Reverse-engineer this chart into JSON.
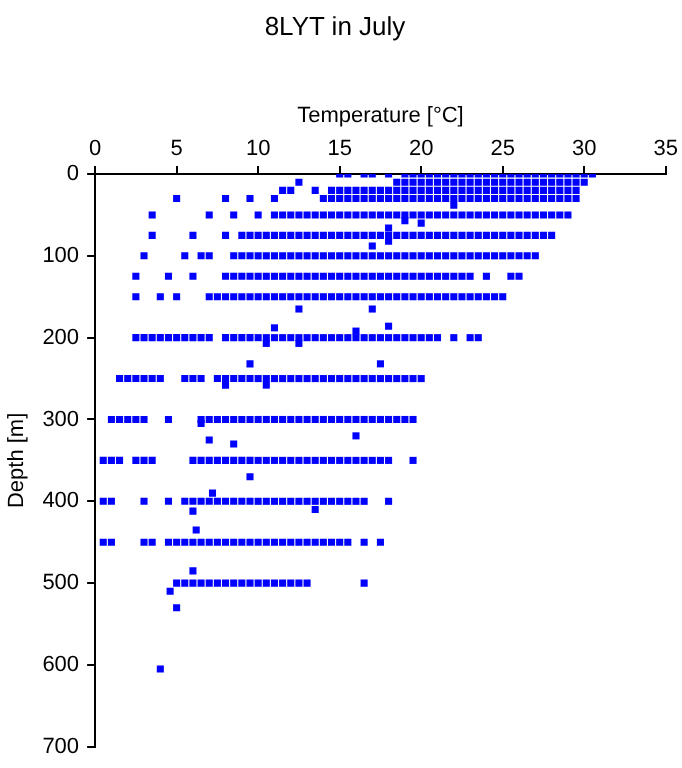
{
  "chart_data": {
    "type": "scatter",
    "title": "8LYT in July",
    "xlabel": "Temperature [°C]",
    "ylabel": "Depth [m]",
    "xlim": [
      0,
      35
    ],
    "xticks": [
      0,
      5,
      10,
      15,
      20,
      25,
      30,
      35
    ],
    "ylim": [
      700,
      0
    ],
    "yticks": [
      0,
      100,
      200,
      300,
      400,
      500,
      600,
      700
    ],
    "grid": false,
    "legend": false,
    "marker": "square",
    "series": [
      {
        "color": "#0000ff",
        "x": [
          15,
          15.5,
          16.5,
          17,
          18,
          19,
          19.5,
          20,
          20.5,
          21,
          21.5,
          22,
          22.5,
          23,
          23.5,
          24,
          24.5,
          25,
          25.5,
          26,
          26.5,
          27,
          27.5,
          28,
          28.5,
          29,
          29.5,
          30,
          30.5
        ],
        "values": [
          0,
          0,
          0,
          0,
          0,
          0,
          0,
          0,
          0,
          0,
          0,
          0,
          0,
          0,
          0,
          0,
          0,
          0,
          0,
          0,
          0,
          0,
          0,
          0,
          0,
          0,
          0,
          0,
          0
        ]
      },
      {
        "color": "#0000ff",
        "x": [
          12.5,
          18.5,
          19,
          19.5,
          20,
          20.5,
          21,
          21.5,
          22,
          22.5,
          23,
          23.5,
          24,
          24.5,
          25,
          25.5,
          26,
          26.5,
          27,
          27.5,
          28,
          28.5,
          29,
          29.5,
          30
        ],
        "values": [
          10,
          10,
          10,
          10,
          10,
          10,
          10,
          10,
          10,
          10,
          10,
          10,
          10,
          10,
          10,
          10,
          10,
          10,
          10,
          10,
          10,
          10,
          10,
          10,
          10
        ]
      },
      {
        "color": "#0000ff",
        "x": [
          11.5,
          12,
          13.5,
          14.5,
          15,
          15.5,
          16,
          16.5,
          17,
          17.5,
          18,
          18.5,
          19,
          19.5,
          20,
          20.5,
          21,
          21.5,
          22,
          22.5,
          23,
          23.5,
          24,
          24.5,
          25,
          25.5,
          26,
          26.5,
          27,
          27.5,
          28,
          28.5,
          29,
          29.5
        ],
        "values": [
          20,
          20,
          20,
          20,
          20,
          20,
          20,
          20,
          20,
          20,
          20,
          20,
          20,
          20,
          20,
          20,
          20,
          20,
          20,
          20,
          20,
          20,
          20,
          20,
          20,
          20,
          20,
          20,
          20,
          20,
          20,
          20,
          20,
          20
        ]
      },
      {
        "color": "#0000ff",
        "x": [
          5,
          8,
          9.5,
          11,
          14,
          14.5,
          15,
          15.5,
          16,
          16.5,
          17,
          17.5,
          18,
          18.5,
          19,
          19.5,
          20,
          20.5,
          21,
          21.5,
          22,
          22.5,
          23,
          23.5,
          24,
          24.5,
          25,
          25.5,
          26,
          26.5,
          27,
          27.5,
          28,
          28.5,
          29,
          29.5
        ],
        "values": [
          30,
          30,
          30,
          30,
          30,
          30,
          30,
          30,
          30,
          30,
          30,
          30,
          30,
          30,
          30,
          30,
          30,
          30,
          30,
          30,
          30,
          30,
          30,
          30,
          30,
          30,
          30,
          30,
          30,
          30,
          30,
          30,
          30,
          30,
          30,
          30
        ]
      },
      {
        "color": "#0000ff",
        "x": [
          3.5,
          7,
          8.5,
          10,
          11,
          11.5,
          12,
          12.5,
          13,
          13.5,
          14,
          14.5,
          15,
          15.5,
          16,
          16.5,
          17,
          17.5,
          18,
          18.5,
          19,
          19.5,
          20,
          20.5,
          21,
          21.5,
          22,
          22.5,
          23,
          23.5,
          24,
          24.5,
          25,
          25.5,
          26,
          26.5,
          27,
          27.5,
          28,
          28.5,
          29
        ],
        "values": [
          50,
          50,
          50,
          50,
          50,
          50,
          50,
          50,
          50,
          50,
          50,
          50,
          50,
          50,
          50,
          50,
          50,
          50,
          50,
          50,
          50,
          50,
          50,
          50,
          50,
          50,
          50,
          50,
          50,
          50,
          50,
          50,
          50,
          50,
          50,
          50,
          50,
          50,
          50,
          50,
          50
        ]
      },
      {
        "color": "#0000ff",
        "x": [
          3.5,
          6,
          8,
          9,
          9.5,
          10,
          10.5,
          11,
          11.5,
          12,
          12.5,
          13,
          13.5,
          14,
          14.5,
          15,
          15.5,
          16,
          16.5,
          17,
          17.5,
          18,
          18.5,
          19,
          19.5,
          20,
          20.5,
          21,
          21.5,
          22,
          22.5,
          23,
          23.5,
          24,
          24.5,
          25,
          25.5,
          26,
          26.5,
          27,
          27.5,
          28
        ],
        "values": [
          75,
          75,
          75,
          75,
          75,
          75,
          75,
          75,
          75,
          75,
          75,
          75,
          75,
          75,
          75,
          75,
          75,
          75,
          75,
          75,
          75,
          75,
          75,
          75,
          75,
          75,
          75,
          75,
          75,
          75,
          75,
          75,
          75,
          75,
          75,
          75,
          75,
          75,
          75,
          75,
          75,
          75
        ]
      },
      {
        "color": "#0000ff",
        "x": [
          3,
          5.5,
          6.5,
          7,
          8.5,
          9,
          9.5,
          10,
          10.5,
          11,
          11.5,
          12,
          12.5,
          13,
          13.5,
          14,
          14.5,
          15,
          15.5,
          16,
          16.5,
          17,
          17.5,
          18,
          18.5,
          19,
          19.5,
          20,
          20.5,
          21,
          21.5,
          22,
          22.5,
          23,
          23.5,
          24,
          24.5,
          25,
          25.5,
          26,
          26.5,
          27
        ],
        "values": [
          100,
          100,
          100,
          100,
          100,
          100,
          100,
          100,
          100,
          100,
          100,
          100,
          100,
          100,
          100,
          100,
          100,
          100,
          100,
          100,
          100,
          100,
          100,
          100,
          100,
          100,
          100,
          100,
          100,
          100,
          100,
          100,
          100,
          100,
          100,
          100,
          100,
          100,
          100,
          100,
          100,
          100
        ]
      },
      {
        "color": "#0000ff",
        "x": [
          2.5,
          4.5,
          6,
          8,
          8.5,
          9,
          9.5,
          10,
          10.5,
          11,
          11.5,
          12,
          12.5,
          13,
          13.5,
          14,
          14.5,
          15,
          15.5,
          16,
          16.5,
          17,
          17.5,
          18,
          18.5,
          19,
          19.5,
          20,
          20.5,
          21,
          21.5,
          22,
          22.5,
          23,
          24,
          25.5,
          26
        ],
        "values": [
          125,
          125,
          125,
          125,
          125,
          125,
          125,
          125,
          125,
          125,
          125,
          125,
          125,
          125,
          125,
          125,
          125,
          125,
          125,
          125,
          125,
          125,
          125,
          125,
          125,
          125,
          125,
          125,
          125,
          125,
          125,
          125,
          125,
          125,
          125,
          125,
          125
        ]
      },
      {
        "color": "#0000ff",
        "x": [
          2.5,
          4,
          5,
          7,
          7.5,
          8,
          8.5,
          9,
          9.5,
          10,
          10.5,
          11,
          11.5,
          12,
          12.5,
          13,
          13.5,
          14,
          14.5,
          15,
          15.5,
          16,
          16.5,
          17,
          17.5,
          18,
          18.5,
          19,
          19.5,
          20,
          20.5,
          21,
          21.5,
          22,
          22.5,
          23,
          23.5,
          24,
          24.5,
          25
        ],
        "values": [
          150,
          150,
          150,
          150,
          150,
          150,
          150,
          150,
          150,
          150,
          150,
          150,
          150,
          150,
          150,
          150,
          150,
          150,
          150,
          150,
          150,
          150,
          150,
          150,
          150,
          150,
          150,
          150,
          150,
          150,
          150,
          150,
          150,
          150,
          150,
          150,
          150,
          150,
          150,
          150
        ]
      },
      {
        "color": "#0000ff",
        "x": [
          2.5,
          3,
          3.5,
          4,
          4.5,
          5,
          5.5,
          6,
          6.5,
          7,
          8,
          8.5,
          9,
          9.5,
          10,
          10.5,
          11,
          11.5,
          12,
          12.5,
          13,
          13.5,
          14,
          14.5,
          15,
          15.5,
          16,
          16.5,
          17,
          17.5,
          18,
          18.5,
          19,
          19.5,
          20,
          20.5,
          21,
          22,
          23,
          23.5
        ],
        "values": [
          200,
          200,
          200,
          200,
          200,
          200,
          200,
          200,
          200,
          200,
          200,
          200,
          200,
          200,
          200,
          200,
          200,
          200,
          200,
          200,
          200,
          200,
          200,
          200,
          200,
          200,
          200,
          200,
          200,
          200,
          200,
          200,
          200,
          200,
          200,
          200,
          200,
          200,
          200,
          200
        ]
      },
      {
        "color": "#0000ff",
        "x": [
          1.5,
          2,
          2.5,
          3,
          3.5,
          4,
          5.5,
          6,
          6.5,
          7.5,
          8,
          8.5,
          9,
          9.5,
          10,
          10.5,
          11,
          11.5,
          12,
          12.5,
          13,
          13.5,
          14,
          14.5,
          15,
          15.5,
          16,
          16.5,
          17,
          17.5,
          18,
          18.5,
          19,
          19.5,
          20
        ],
        "values": [
          250,
          250,
          250,
          250,
          250,
          250,
          250,
          250,
          250,
          250,
          250,
          250,
          250,
          250,
          250,
          250,
          250,
          250,
          250,
          250,
          250,
          250,
          250,
          250,
          250,
          250,
          250,
          250,
          250,
          250,
          250,
          250,
          250,
          250,
          250
        ]
      },
      {
        "color": "#0000ff",
        "x": [
          1,
          1.5,
          2,
          2.5,
          3,
          4.5,
          6.5,
          7,
          7.5,
          8,
          8.5,
          9,
          9.5,
          10,
          10.5,
          11,
          11.5,
          12,
          12.5,
          13,
          13.5,
          14,
          14.5,
          15,
          15.5,
          16,
          16.5,
          17,
          17.5,
          18,
          18.5,
          19,
          19.5
        ],
        "values": [
          300,
          300,
          300,
          300,
          300,
          300,
          300,
          300,
          300,
          300,
          300,
          300,
          300,
          300,
          300,
          300,
          300,
          300,
          300,
          300,
          300,
          300,
          300,
          300,
          300,
          300,
          300,
          300,
          300,
          300,
          300,
          300,
          300
        ]
      },
      {
        "color": "#0000ff",
        "x": [
          0.5,
          1,
          1.5,
          2.5,
          3,
          3.5,
          6,
          6.5,
          7,
          7.5,
          8,
          8.5,
          9,
          9.5,
          10,
          10.5,
          11,
          11.5,
          12,
          12.5,
          13,
          13.5,
          14,
          14.5,
          15,
          15.5,
          16,
          16.5,
          17,
          17.5,
          18,
          19.5
        ],
        "values": [
          350,
          350,
          350,
          350,
          350,
          350,
          350,
          350,
          350,
          350,
          350,
          350,
          350,
          350,
          350,
          350,
          350,
          350,
          350,
          350,
          350,
          350,
          350,
          350,
          350,
          350,
          350,
          350,
          350,
          350,
          350,
          350
        ]
      },
      {
        "color": "#0000ff",
        "x": [
          0.5,
          1,
          3,
          4.5,
          5.5,
          6,
          6.5,
          7,
          7.5,
          8,
          8.5,
          9,
          9.5,
          10,
          10.5,
          11,
          11.5,
          12,
          12.5,
          13,
          13.5,
          14,
          14.5,
          15,
          15.5,
          16,
          16.5,
          18
        ],
        "values": [
          400,
          400,
          400,
          400,
          400,
          400,
          400,
          400,
          400,
          400,
          400,
          400,
          400,
          400,
          400,
          400,
          400,
          400,
          400,
          400,
          400,
          400,
          400,
          400,
          400,
          400,
          400,
          400
        ]
      },
      {
        "color": "#0000ff",
        "x": [
          0.5,
          1,
          3,
          3.5,
          4.5,
          5,
          5.5,
          6,
          6.5,
          7,
          7.5,
          8,
          8.5,
          9,
          9.5,
          10,
          10.5,
          11,
          11.5,
          12,
          12.5,
          13,
          13.5,
          14,
          14.5,
          15,
          15.5,
          16.5,
          17.5
        ],
        "values": [
          450,
          450,
          450,
          450,
          450,
          450,
          450,
          450,
          450,
          450,
          450,
          450,
          450,
          450,
          450,
          450,
          450,
          450,
          450,
          450,
          450,
          450,
          450,
          450,
          450,
          450,
          450,
          450,
          450
        ]
      },
      {
        "color": "#0000ff",
        "x": [
          5,
          5.5,
          6,
          6.5,
          7,
          7.5,
          8,
          8.5,
          9,
          9.5,
          10,
          10.5,
          11,
          11.5,
          12,
          12.5,
          13,
          16.5
        ],
        "values": [
          500,
          500,
          500,
          500,
          500,
          500,
          500,
          500,
          500,
          500,
          500,
          500,
          500,
          500,
          500,
          500,
          500,
          500
        ]
      },
      {
        "color": "#0000ff",
        "x": [
          4.6,
          5,
          4,
          6,
          6.2,
          7.2,
          13.5,
          9.5,
          6,
          16,
          7,
          8.5,
          6.5,
          9.5,
          17.5,
          8,
          10.5,
          10.5,
          12.5,
          11,
          16,
          18,
          12.5,
          17,
          17,
          18,
          18,
          19,
          20,
          22
        ],
        "values": [
          510,
          530,
          605,
          485,
          435,
          390,
          410,
          370,
          412,
          320,
          325,
          330,
          305,
          232,
          232,
          258,
          258,
          207,
          207,
          188,
          192,
          186,
          165,
          165,
          88,
          66,
          82,
          57,
          60,
          38
        ]
      }
    ]
  }
}
